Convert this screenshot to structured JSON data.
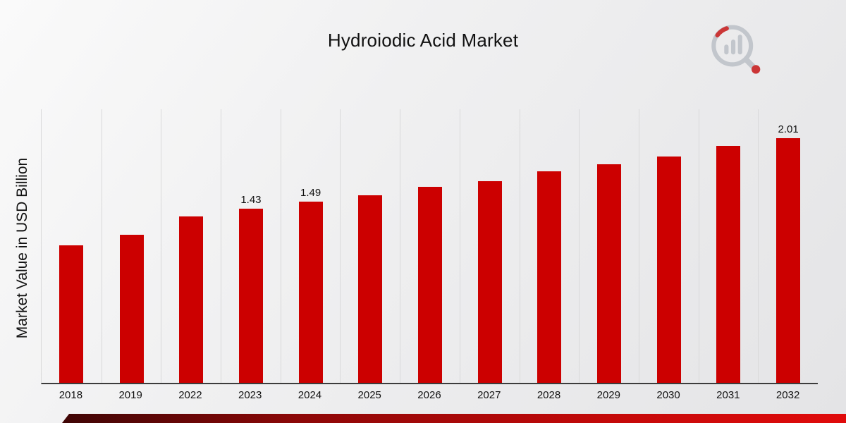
{
  "page": {
    "title": "Hydroiodic Acid Market"
  },
  "chart_data": {
    "type": "bar",
    "title": "Hydroiodic Acid Market",
    "xlabel": "",
    "ylabel": "Market Value in USD Billion",
    "ylim": [
      0,
      2.25
    ],
    "grid": "vertical",
    "legend": "none",
    "bar_color": "#CC0000",
    "categories": [
      "2018",
      "2019",
      "2022",
      "2023",
      "2024",
      "2025",
      "2026",
      "2027",
      "2028",
      "2029",
      "2030",
      "2031",
      "2032"
    ],
    "values": [
      1.13,
      1.22,
      1.37,
      1.43,
      1.49,
      1.54,
      1.61,
      1.66,
      1.74,
      1.8,
      1.86,
      1.95,
      2.01
    ],
    "labels": [
      "",
      "",
      "",
      "1.43",
      "1.49",
      "",
      "",
      "",
      "",
      "",
      "",
      "",
      "2.01"
    ]
  },
  "branding": {
    "logo": "magnifier-bar-chart-icon"
  }
}
